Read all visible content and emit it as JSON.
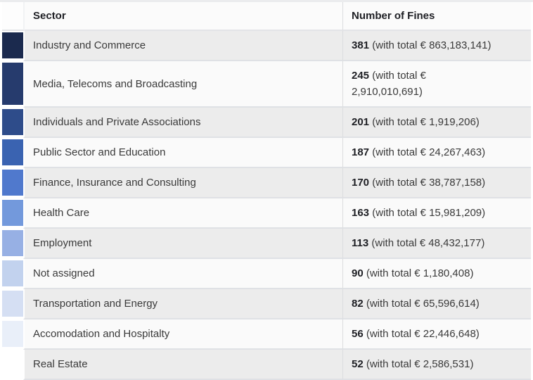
{
  "table": {
    "header": {
      "sector": "Sector",
      "fines": "Number of Fines"
    },
    "rows": [
      {
        "sector": "Industry and Commerce",
        "count": "381",
        "total": "(with total € 863,183,141)",
        "swatch": "#1b2a4e",
        "wrap": false
      },
      {
        "sector": "Media, Telecoms and Broadcasting",
        "count": "245",
        "total": "(with total € 2,910,010,691)",
        "swatch": "#263b6d",
        "wrap": true
      },
      {
        "sector": "Individuals and Private Associations",
        "count": "201",
        "total": "(with total € 1,919,206)",
        "swatch": "#2e4c8a",
        "wrap": false
      },
      {
        "sector": "Public Sector and Education",
        "count": "187",
        "total": "(with total € 24,267,463)",
        "swatch": "#3a63b1",
        "wrap": false
      },
      {
        "sector": "Finance, Insurance and Consulting",
        "count": "170",
        "total": "(with total € 38,787,158)",
        "swatch": "#5079cd",
        "wrap": false
      },
      {
        "sector": "Health Care",
        "count": "163",
        "total": "(with total € 15,981,209)",
        "swatch": "#7399dc",
        "wrap": false
      },
      {
        "sector": "Employment",
        "count": "113",
        "total": "(with total € 48,432,177)",
        "swatch": "#97b0e4",
        "wrap": false
      },
      {
        "sector": "Not assigned",
        "count": "90",
        "total": "(with total € 1,180,408)",
        "swatch": "#c2d2ee",
        "wrap": false
      },
      {
        "sector": "Transportation and Energy",
        "count": "82",
        "total": "(with total € 65,596,614)",
        "swatch": "#d5dff3",
        "wrap": false
      },
      {
        "sector": "Accomodation and Hospitalty",
        "count": "56",
        "total": "(with total € 22,446,648)",
        "swatch": "#e9eff9",
        "wrap": false
      },
      {
        "sector": "Real Estate",
        "count": "52",
        "total": "(with total € 2,586,531)",
        "swatch": "#ffffff",
        "wrap": false
      }
    ],
    "style": {
      "row_alt_bg": "#ececec",
      "row_bg": "#fafafa",
      "header_bg": "#fbfbfb",
      "border_color": "#dfe1e5",
      "text_color": "#3a3a3a",
      "emphasis_color": "#1e1f24"
    }
  },
  "chart_data": {
    "type": "table",
    "title": "",
    "columns": [
      "Sector",
      "Number of Fines"
    ],
    "sectors": [
      "Industry and Commerce",
      "Media, Telecoms and Broadcasting",
      "Individuals and Private Associations",
      "Public Sector and Education",
      "Finance, Insurance and Consulting",
      "Health Care",
      "Employment",
      "Not assigned",
      "Transportation and Energy",
      "Accomodation and Hospitalty",
      "Real Estate"
    ],
    "fines_count": [
      381,
      245,
      201,
      187,
      170,
      163,
      113,
      90,
      82,
      56,
      52
    ],
    "fines_total_eur": [
      863183141,
      2910010691,
      1919206,
      24267463,
      38787158,
      15981209,
      48432177,
      1180408,
      65596614,
      22446648,
      2586531
    ],
    "swatch_colors": [
      "#1b2a4e",
      "#263b6d",
      "#2e4c8a",
      "#3a63b1",
      "#5079cd",
      "#7399dc",
      "#97b0e4",
      "#c2d2ee",
      "#d5dff3",
      "#e9eff9",
      "#ffffff"
    ]
  }
}
